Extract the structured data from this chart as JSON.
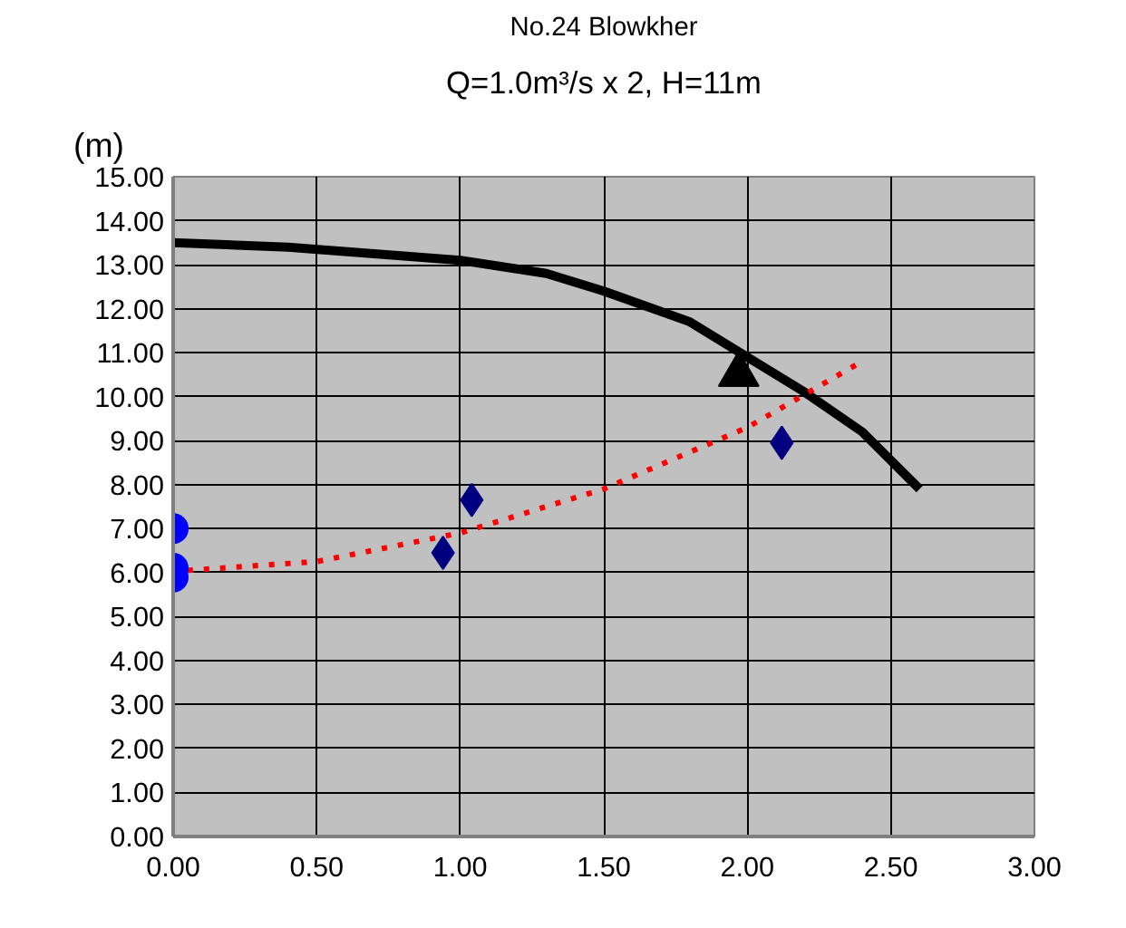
{
  "chart_data": {
    "type": "line",
    "title": "No.24 Blowkher",
    "subtitle": "Q=1.0m³/s x 2, H=11m",
    "ylabel": "(m)",
    "xlim": [
      0,
      3
    ],
    "xticks": [
      {
        "value": 0,
        "label": "0.00"
      },
      {
        "value": 0.5,
        "label": "0.50"
      },
      {
        "value": 1,
        "label": "1.00"
      },
      {
        "value": 1.5,
        "label": "1.50"
      },
      {
        "value": 2,
        "label": "2.00"
      },
      {
        "value": 2.5,
        "label": "2.50"
      },
      {
        "value": 3,
        "label": "3.00"
      }
    ],
    "ylim": [
      0,
      15
    ],
    "yticks": [
      {
        "value": 0,
        "label": "0.00"
      },
      {
        "value": 1,
        "label": "1.00"
      },
      {
        "value": 2,
        "label": "2.00"
      },
      {
        "value": 3,
        "label": "3.00"
      },
      {
        "value": 4,
        "label": "4.00"
      },
      {
        "value": 5,
        "label": "5.00"
      },
      {
        "value": 6,
        "label": "6.00"
      },
      {
        "value": 7,
        "label": "7.00"
      },
      {
        "value": 8,
        "label": "8.00"
      },
      {
        "value": 9,
        "label": "9.00"
      },
      {
        "value": 10,
        "label": "10.00"
      },
      {
        "value": 11,
        "label": "11.00"
      },
      {
        "value": 12,
        "label": "12.00"
      },
      {
        "value": 13,
        "label": "13.00"
      },
      {
        "value": 14,
        "label": "14.00"
      },
      {
        "value": 15,
        "label": "15.00"
      }
    ],
    "grid": true,
    "series": [
      {
        "color": "#000000",
        "line_style": "solid",
        "marker": "none",
        "x": [
          0,
          0.4,
          1.0,
          1.3,
          1.5,
          1.8,
          2.0,
          2.2,
          2.4,
          2.6
        ],
        "values": [
          13.5,
          13.4,
          13.1,
          12.8,
          12.4,
          11.7,
          10.9,
          10.1,
          9.2,
          7.9
        ]
      },
      {
        "color": "#ff0000",
        "line_style": "dotted",
        "marker": "none",
        "x": [
          0.05,
          0.5,
          1.0,
          1.5,
          2.0,
          2.4
        ],
        "values": [
          6.05,
          6.25,
          6.9,
          7.9,
          9.3,
          10.8
        ]
      },
      {
        "type": "scatter",
        "color": "#0000ff",
        "marker": "circle",
        "x": [
          0,
          0,
          0
        ],
        "values": [
          7.0,
          6.1,
          5.9
        ]
      },
      {
        "type": "scatter",
        "color": "#000080",
        "marker": "diamond",
        "x": [
          0.94,
          1.04,
          2.12
        ],
        "values": [
          6.45,
          7.65,
          8.95
        ]
      },
      {
        "type": "scatter",
        "color": "#000000",
        "marker": "triangle",
        "x": [
          1.97
        ],
        "values": [
          10.5
        ]
      }
    ]
  }
}
